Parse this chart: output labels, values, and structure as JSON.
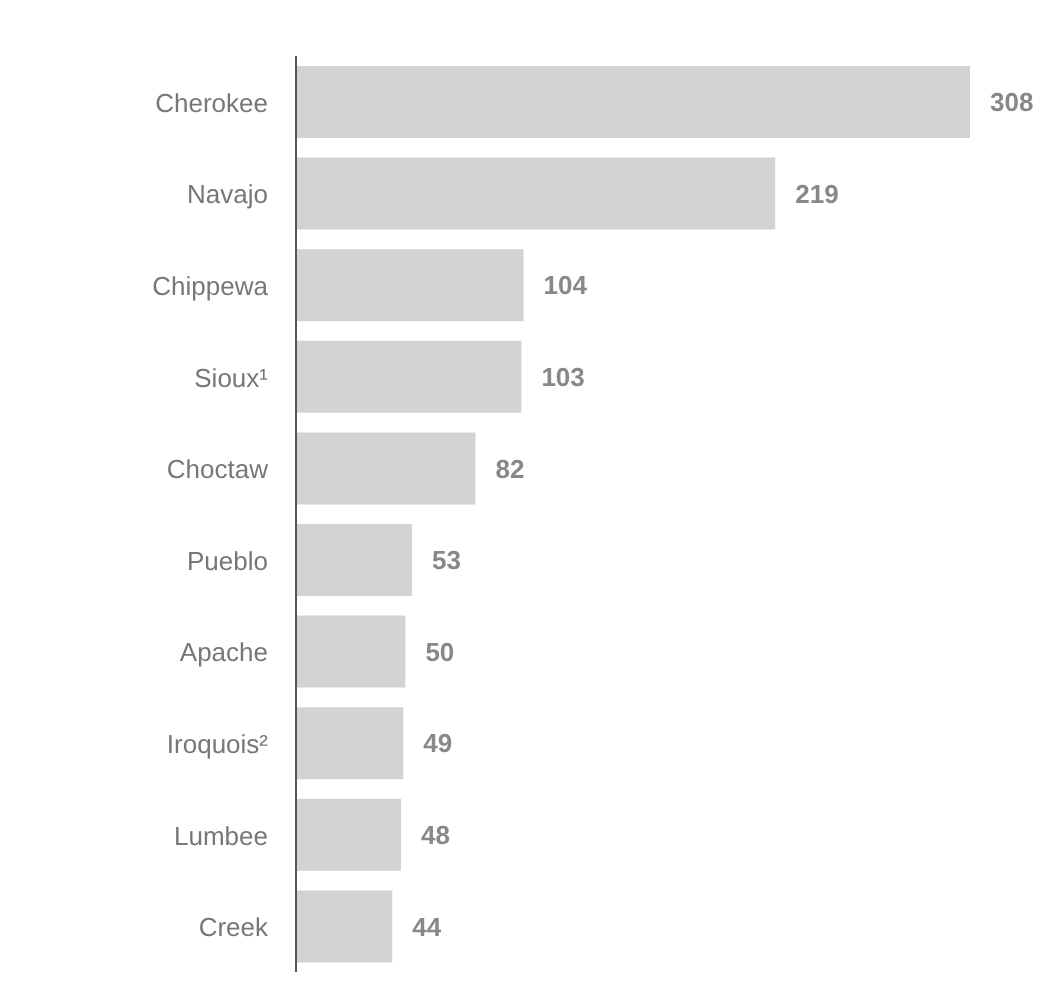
{
  "chart_data": {
    "type": "bar",
    "orientation": "horizontal",
    "categories": [
      "Cherokee",
      "Navajo",
      "Chippewa",
      "Sioux¹",
      "Choctaw",
      "Pueblo",
      "Apache",
      "Iroquois²",
      "Lumbee",
      "Creek"
    ],
    "values": [
      308,
      219,
      104,
      103,
      82,
      53,
      50,
      49,
      48,
      44
    ],
    "color": "#d3d3d3",
    "data_labels": true,
    "grid": false,
    "legend": false
  }
}
